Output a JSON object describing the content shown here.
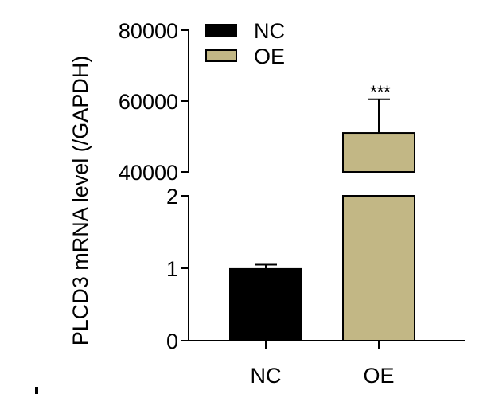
{
  "chart_data": {
    "type": "bar",
    "ylabel": "PLCD3 mRNA level (/GAPDH)",
    "categories": [
      "NC",
      "OE"
    ],
    "series": [
      {
        "name": "NC",
        "values": [
          0.99,
          null
        ],
        "errors": [
          0.06,
          null
        ],
        "color": "#000000"
      },
      {
        "name": "OE",
        "values": [
          null,
          51000
        ],
        "errors": [
          null,
          9500
        ],
        "color": "#c2b785"
      }
    ],
    "axis": {
      "broken": true,
      "lower_segment": {
        "ylim": [
          0,
          2
        ],
        "ticks": [
          0,
          1,
          2
        ]
      },
      "upper_segment": {
        "ylim": [
          40000,
          80000
        ],
        "ticks": [
          40000,
          60000,
          80000
        ]
      }
    },
    "tick_labels_lower": [
      "0",
      "1",
      "2"
    ],
    "tick_labels_upper": [
      "40000",
      "60000",
      "80000"
    ],
    "annotations": [
      {
        "category": "OE",
        "text": "***"
      }
    ],
    "legend": {
      "placement": "top-left",
      "entries": [
        {
          "label": "NC",
          "color": "#000000"
        },
        {
          "label": "OE",
          "color": "#c2b785"
        }
      ]
    },
    "grid": false
  }
}
